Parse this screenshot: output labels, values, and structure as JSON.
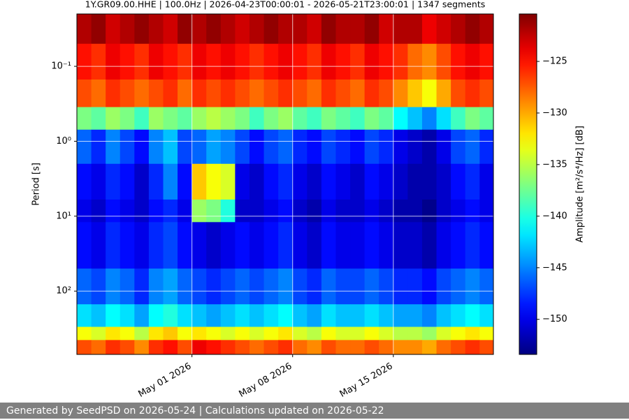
{
  "chart_data": {
    "type": "heatmap",
    "title": "1Y.GR09.00.HHE | 100.0Hz | 2026-04-23T00:00:01 - 2026-05-21T23:00:01 | 1347 segments",
    "y_label": "Period [s]",
    "colorbar_label": "Amplitude [m²/s⁴/Hz] [dB]",
    "footer": "Generated by SeedPSD on 2026-05-24 | Calculations updated on 2026-05-22",
    "xlim": [
      "2026-04-23T00:00:01",
      "2026-05-21T23:00:01"
    ],
    "xticks": [
      {
        "value": "2026-05-01",
        "label": "May 01 2026"
      },
      {
        "value": "2026-05-08",
        "label": "May 08 2026"
      },
      {
        "value": "2026-05-15",
        "label": "May 15 2026"
      }
    ],
    "ylim": [
      0.02,
      700
    ],
    "y_log": true,
    "y_inverted": true,
    "yticks": [
      {
        "value": 0.1,
        "label": "10⁻¹"
      },
      {
        "value": 1,
        "label": "10⁰"
      },
      {
        "value": 10,
        "label": "10¹"
      },
      {
        "value": 100,
        "label": "10²"
      }
    ],
    "grid": true,
    "colormap": "jet",
    "clim": [
      -153.4,
      -120.4
    ],
    "colorbar_ticks": [
      {
        "value": -125,
        "label": "−125"
      },
      {
        "value": -130,
        "label": "−130"
      },
      {
        "value": -135,
        "label": "−135"
      },
      {
        "value": -140,
        "label": "−140"
      },
      {
        "value": -145,
        "label": "−145"
      },
      {
        "value": -150,
        "label": "−150"
      }
    ],
    "x": [
      "2026-04-23",
      "2026-04-24",
      "2026-04-25",
      "2026-04-26",
      "2026-04-27",
      "2026-04-28",
      "2026-04-29",
      "2026-04-30",
      "2026-05-01",
      "2026-05-02",
      "2026-05-03",
      "2026-05-04",
      "2026-05-05",
      "2026-05-06",
      "2026-05-07",
      "2026-05-08",
      "2026-05-09",
      "2026-05-10",
      "2026-05-11",
      "2026-05-12",
      "2026-05-13",
      "2026-05-14",
      "2026-05-15",
      "2026-05-16",
      "2026-05-17",
      "2026-05-18",
      "2026-05-19",
      "2026-05-20",
      "2026-05-21"
    ],
    "y_edges": [
      0.02,
      0.05,
      0.15,
      0.35,
      0.7,
      2,
      6,
      12,
      50,
      150,
      300,
      450,
      700
    ],
    "z": [
      [
        -122,
        -121,
        -123,
        -122,
        -121,
        -122,
        -123,
        -121,
        -122,
        -121,
        -122,
        -123,
        -122,
        -121,
        -122,
        -122,
        -123,
        -121,
        -122,
        -122,
        -121,
        -123,
        -122,
        -122,
        -124,
        -123,
        -122,
        -121,
        -122
      ],
      [
        -125,
        -126,
        -124,
        -125,
        -126,
        -124,
        -125,
        -126,
        -124,
        -125,
        -124,
        -125,
        -126,
        -125,
        -124,
        -125,
        -126,
        -124,
        -125,
        -126,
        -124,
        -125,
        -126,
        -128,
        -129,
        -127,
        -125,
        -124,
        -125
      ],
      [
        -127,
        -128,
        -126,
        -127,
        -128,
        -127,
        -126,
        -128,
        -126,
        -127,
        -126,
        -127,
        -128,
        -127,
        -126,
        -127,
        -128,
        -126,
        -127,
        -128,
        -126,
        -127,
        -129,
        -131,
        -133,
        -130,
        -127,
        -126,
        -127
      ],
      [
        -137,
        -138,
        -136,
        -137,
        -139,
        -136,
        -137,
        -138,
        -136,
        -135,
        -136,
        -137,
        -139,
        -137,
        -136,
        -138,
        -139,
        -137,
        -138,
        -139,
        -137,
        -138,
        -141,
        -143,
        -145,
        -142,
        -139,
        -137,
        -138
      ],
      [
        -146,
        -148,
        -145,
        -147,
        -149,
        -145,
        -143,
        -147,
        -146,
        -144,
        -145,
        -147,
        -149,
        -147,
        -146,
        -148,
        -149,
        -147,
        -148,
        -149,
        -147,
        -148,
        -150,
        -151,
        -152,
        -150,
        -147,
        -146,
        -148
      ],
      [
        -149,
        -150,
        -148,
        -149,
        -151,
        -148,
        -145,
        -149,
        -131,
        -133,
        -134,
        -150,
        -151,
        -149,
        -148,
        -150,
        -151,
        -149,
        -150,
        -151,
        -149,
        -150,
        -151,
        -152,
        -152,
        -151,
        -149,
        -148,
        -150
      ],
      [
        -150,
        -151,
        -149,
        -150,
        -151,
        -149,
        -148,
        -150,
        -136,
        -137,
        -140,
        -151,
        -151,
        -150,
        -149,
        -151,
        -152,
        -150,
        -151,
        -151,
        -150,
        -151,
        -152,
        -152,
        -153,
        -151,
        -150,
        -149,
        -150
      ],
      [
        -149,
        -150,
        -148,
        -149,
        -150,
        -148,
        -147,
        -149,
        -150,
        -151,
        -150,
        -149,
        -150,
        -149,
        -148,
        -150,
        -151,
        -149,
        -150,
        -150,
        -149,
        -150,
        -151,
        -151,
        -152,
        -150,
        -149,
        -148,
        -149
      ],
      [
        -146,
        -147,
        -145,
        -146,
        -148,
        -145,
        -144,
        -146,
        -147,
        -148,
        -147,
        -146,
        -147,
        -146,
        -145,
        -147,
        -148,
        -146,
        -147,
        -147,
        -146,
        -147,
        -148,
        -148,
        -149,
        -147,
        -146,
        -145,
        -146
      ],
      [
        -142,
        -143,
        -141,
        -142,
        -144,
        -141,
        -140,
        -142,
        -143,
        -144,
        -143,
        -142,
        -143,
        -142,
        -141,
        -143,
        -144,
        -142,
        -143,
        -143,
        -142,
        -143,
        -144,
        -144,
        -145,
        -143,
        -142,
        -141,
        -142
      ],
      [
        -133,
        -134,
        -132,
        -133,
        -135,
        -132,
        -131,
        -133,
        -132,
        -133,
        -134,
        -133,
        -134,
        -133,
        -132,
        -134,
        -135,
        -133,
        -134,
        -134,
        -133,
        -134,
        -135,
        -135,
        -136,
        -134,
        -133,
        -132,
        -133
      ],
      [
        -127,
        -128,
        -126,
        -127,
        -129,
        -126,
        -125,
        -127,
        -124,
        -125,
        -126,
        -127,
        -128,
        -127,
        -126,
        -128,
        -129,
        -127,
        -128,
        -128,
        -127,
        -128,
        -129,
        -129,
        -130,
        -128,
        -127,
        -126,
        -127
      ]
    ]
  }
}
